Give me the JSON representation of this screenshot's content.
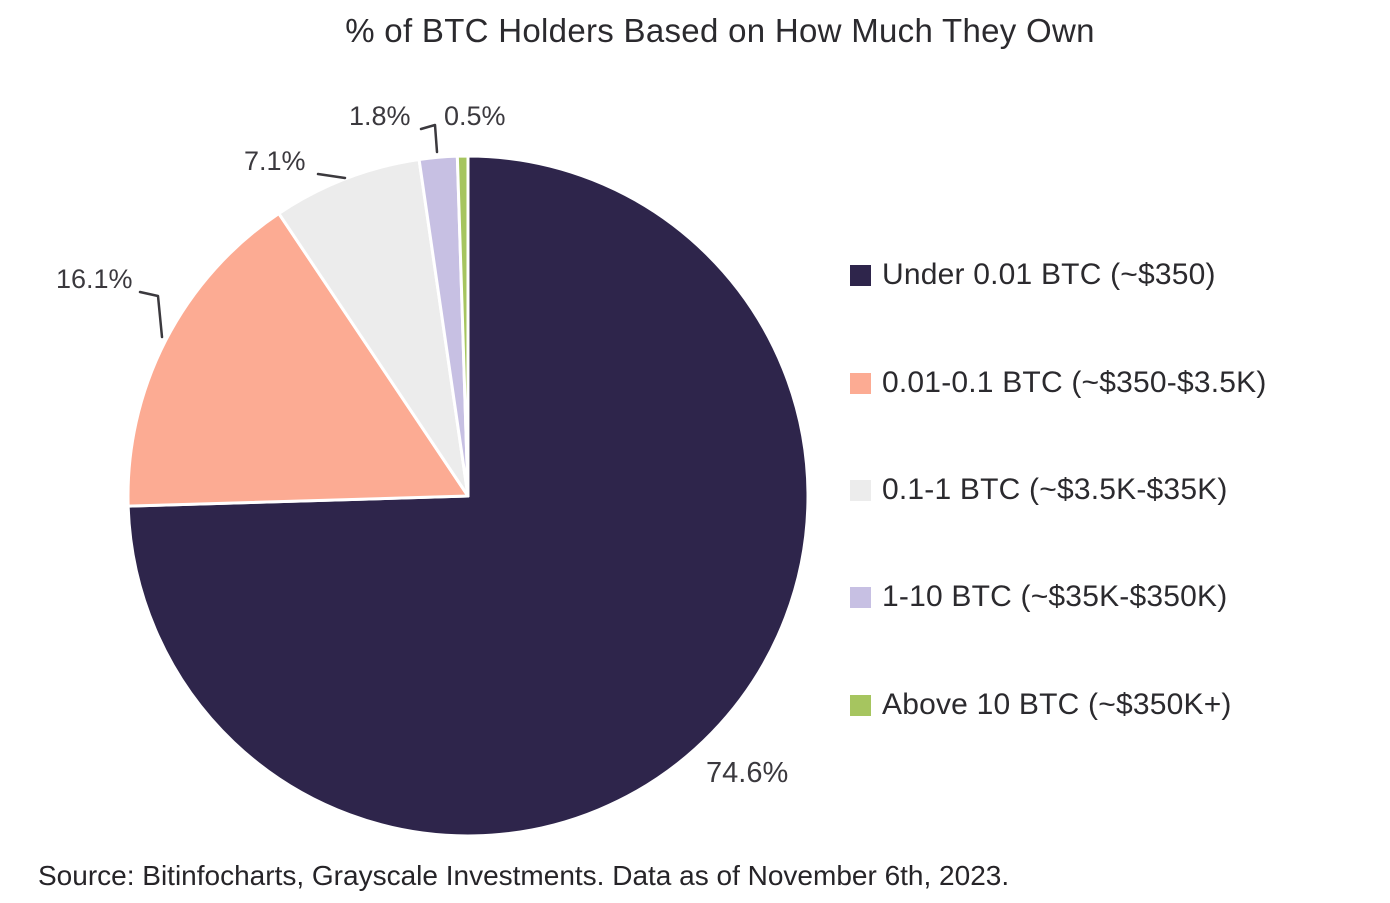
{
  "title": "% of BTC Holders Based on How Much They Own",
  "source_note": "Source: Bitinfocharts, Grayscale Investments. Data as of November 6th, 2023.",
  "chart_data": {
    "type": "pie",
    "title": "% of BTC Holders Based on How Much They Own",
    "legend_position": "right",
    "start_angle_deg": -90,
    "direction": "clockwise",
    "slice_gap_color": "#ffffff",
    "slices": [
      {
        "legend_label": "Under 0.01 BTC (~$350)",
        "value": 74.6,
        "pct_label": "74.6%",
        "color": "#2e254b"
      },
      {
        "legend_label": "0.01-0.1 BTC (~$350-$3.5K)",
        "value": 16.1,
        "pct_label": "16.1%",
        "color": "#fcab93"
      },
      {
        "legend_label": "0.1-1 BTC (~$3.5K-$35K)",
        "value": 7.1,
        "pct_label": "7.1%",
        "color": "#ececec"
      },
      {
        "legend_label": "1-10 BTC (~$35K-$350K)",
        "value": 1.8,
        "pct_label": "1.8%",
        "color": "#c7c0e3"
      },
      {
        "legend_label": "Above 10 BTC (~$350K+)",
        "value": 0.5,
        "pct_label": "0.5%",
        "color": "#a6c55f"
      }
    ],
    "source_note": "Source: Bitinfocharts, Grayscale Investments. Data as of November 6th, 2023."
  }
}
